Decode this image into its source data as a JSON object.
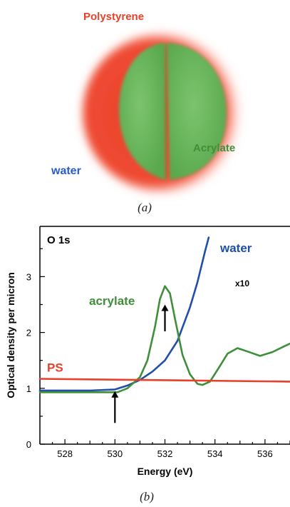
{
  "figure": {
    "panel_a": {
      "caption": "(a)",
      "labels": {
        "polystyrene": "Polystyrene",
        "acrylate": "Acrylate",
        "water": "water"
      },
      "colors": {
        "polystyrene": "#e8402a",
        "acrylate": "#3f8f3a",
        "water": "#2a5cc9"
      }
    },
    "panel_b": {
      "caption": "(b)"
    }
  },
  "chart_data": {
    "type": "line",
    "title": "O 1s",
    "xlabel": "Energy (eV)",
    "ylabel": "Optical density per micron",
    "xlim": [
      527,
      537
    ],
    "ylim": [
      0,
      3.9
    ],
    "xticks": [
      528,
      530,
      532,
      534,
      536
    ],
    "yticks": [
      0,
      1,
      2,
      3
    ],
    "grid": false,
    "series": [
      {
        "name": "water",
        "color": "#1f4fa8",
        "annotation": "x10",
        "x": [
          527,
          529,
          530,
          530.5,
          531,
          531.5,
          532,
          532.5,
          533,
          533.3,
          533.6,
          533.75
        ],
        "y": [
          0.96,
          0.96,
          0.98,
          1.05,
          1.15,
          1.3,
          1.5,
          1.85,
          2.45,
          2.9,
          3.45,
          3.7
        ]
      },
      {
        "name": "acrylate",
        "color": "#3f8f3a",
        "x": [
          527,
          529.5,
          530.1,
          530.5,
          531,
          531.3,
          531.6,
          531.8,
          532,
          532.2,
          532.4,
          532.7,
          533,
          533.3,
          533.5,
          533.8,
          534.2,
          534.5,
          534.9,
          535.3,
          535.8,
          536.3,
          536.8,
          537
        ],
        "y": [
          0.93,
          0.93,
          0.93,
          1.0,
          1.2,
          1.5,
          2.1,
          2.6,
          2.83,
          2.7,
          2.25,
          1.6,
          1.25,
          1.08,
          1.06,
          1.12,
          1.4,
          1.62,
          1.72,
          1.66,
          1.58,
          1.65,
          1.76,
          1.8
        ]
      },
      {
        "name": "PS",
        "color": "#e8402a",
        "x": [
          527,
          537
        ],
        "y": [
          1.17,
          1.12
        ]
      }
    ],
    "arrows": [
      {
        "x": 530,
        "y_from": 0.38,
        "y_to": 0.95
      },
      {
        "x": 532,
        "y_from": 2.02,
        "y_to": 2.5
      }
    ]
  }
}
